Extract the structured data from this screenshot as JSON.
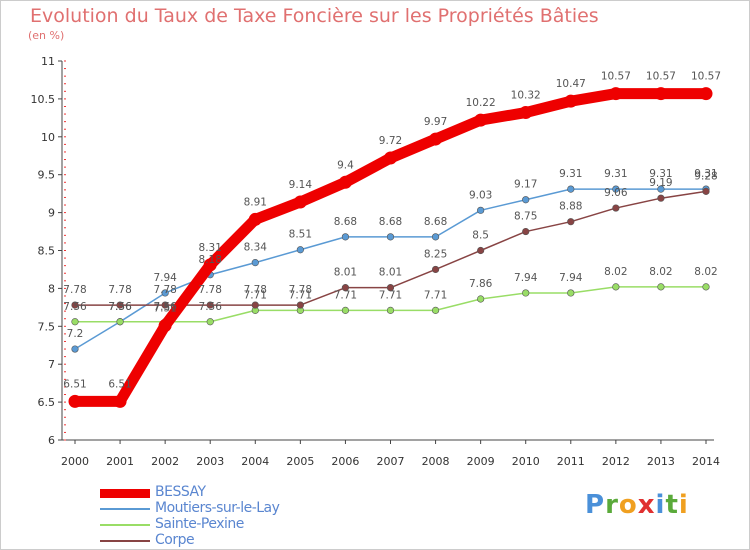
{
  "chart_data": {
    "type": "line",
    "title": "Evolution du Taux de Taxe Foncière sur les Propriétés Bâties",
    "unit_label": "(en %)",
    "xlabel": "",
    "ylabel": "",
    "x": [
      "2000",
      "2001",
      "2002",
      "2003",
      "2004",
      "2005",
      "2006",
      "2007",
      "2008",
      "2009",
      "2010",
      "2011",
      "2012",
      "2013",
      "2014"
    ],
    "ylim": [
      6,
      11
    ],
    "yticks": [
      6,
      6.5,
      7,
      7.5,
      8,
      8.5,
      9,
      9.5,
      10,
      10.5,
      11
    ],
    "ytick_labels": [
      "6",
      "6.5",
      "7",
      "7.5",
      "8",
      "8.5",
      "9",
      "9.5",
      "10",
      "10.5",
      "11"
    ],
    "grid": false,
    "legend_position": "bottom-left",
    "series": [
      {
        "name": "BESSAY",
        "color": "#ee0000",
        "values": [
          6.51,
          6.51,
          7.51,
          8.31,
          8.91,
          9.14,
          9.4,
          9.72,
          9.97,
          10.22,
          10.32,
          10.47,
          10.57,
          10.57,
          10.57
        ],
        "labels": [
          "6.51",
          "6.51",
          "7.51",
          "8.31",
          "8.91",
          "9.14",
          "9.4",
          "9.72",
          "9.97",
          "10.22",
          "10.32",
          "10.47",
          "10.57",
          "10.57",
          "10.57"
        ]
      },
      {
        "name": "Moutiers-sur-le-Lay",
        "color": "#5a9ad4",
        "values": [
          7.2,
          7.56,
          7.94,
          8.18,
          8.34,
          8.51,
          8.68,
          8.68,
          8.68,
          9.03,
          9.17,
          9.31,
          9.31,
          9.31,
          9.31
        ],
        "labels": [
          "7.2",
          "7.56",
          "7.94",
          "8.18",
          "8.34",
          "8.51",
          "8.68",
          "8.68",
          "8.68",
          "9.03",
          "9.17",
          "9.31",
          "9.31",
          "9.31",
          "9.31"
        ]
      },
      {
        "name": "Sainte-Pexine",
        "color": "#99dd66",
        "values": [
          7.56,
          7.56,
          7.56,
          7.56,
          7.71,
          7.71,
          7.71,
          7.71,
          7.71,
          7.86,
          7.94,
          7.94,
          8.02,
          8.02,
          8.02
        ],
        "labels": [
          "7.56",
          "7.56",
          "7.56",
          "7.56",
          "7.71",
          "7.71",
          "7.71",
          "7.71",
          "7.71",
          "7.86",
          "7.94",
          "7.94",
          "8.02",
          "8.02",
          "8.02"
        ]
      },
      {
        "name": "Corpe",
        "color": "#884444",
        "values": [
          7.78,
          7.78,
          7.78,
          7.78,
          7.78,
          7.78,
          8.01,
          8.01,
          8.25,
          8.5,
          8.75,
          8.88,
          9.06,
          9.19,
          9.28
        ],
        "labels": [
          "7.78",
          "7.78",
          "7.78",
          "7.78",
          "7.78",
          "7.78",
          "8.01",
          "8.01",
          "8.25",
          "8.5",
          "8.75",
          "8.88",
          "9.06",
          "9.19",
          "9.28"
        ]
      }
    ],
    "logo_text": "Proxiti"
  }
}
